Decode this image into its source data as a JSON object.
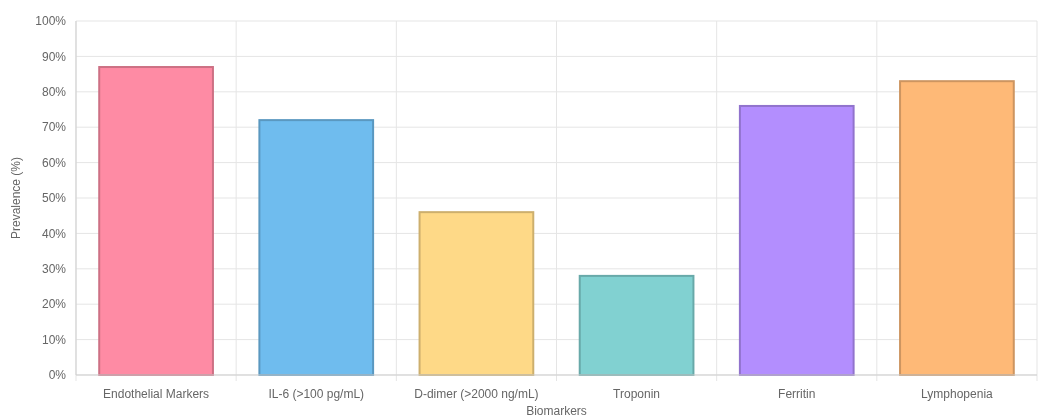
{
  "chart_data": {
    "type": "bar",
    "xlabel": "Biomarkers",
    "ylabel": "Prevalence (%)",
    "categories": [
      "Endothelial Markers",
      "IL-6 (>100 pg/mL)",
      "D-dimer (>2000 ng/mL)",
      "Troponin",
      "Ferritin",
      "Lymphopenia"
    ],
    "values": [
      87,
      72,
      46,
      28,
      76,
      83
    ],
    "colors": [
      "#fe8ba4",
      "#6fbcee",
      "#fed987",
      "#81d1d1",
      "#b38efe",
      "#feb977"
    ],
    "ylim": [
      0,
      100
    ],
    "yticks": [
      {
        "value": 0,
        "label": "0%"
      },
      {
        "value": 10,
        "label": "10%"
      },
      {
        "value": 20,
        "label": "20%"
      },
      {
        "value": 30,
        "label": "30%"
      },
      {
        "value": 40,
        "label": "40%"
      },
      {
        "value": 50,
        "label": "50%"
      },
      {
        "value": 60,
        "label": "60%"
      },
      {
        "value": 70,
        "label": "70%"
      },
      {
        "value": 80,
        "label": "80%"
      },
      {
        "value": 90,
        "label": "90%"
      },
      {
        "value": 100,
        "label": "100%"
      }
    ],
    "grid": true
  }
}
